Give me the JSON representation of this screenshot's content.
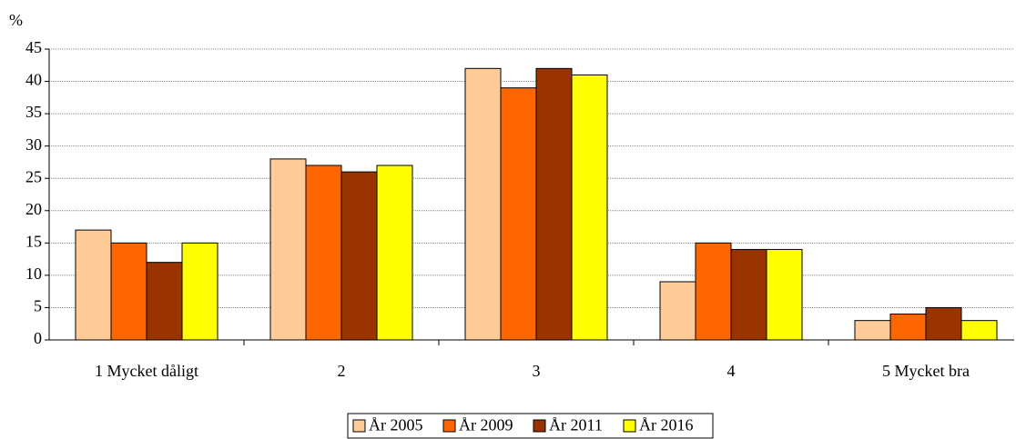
{
  "chart_data": {
    "type": "bar",
    "y_label": "%",
    "categories": [
      "1 Mycket dåligt",
      "2",
      "3",
      "4",
      "5 Mycket bra"
    ],
    "series": [
      {
        "name": "År 2005",
        "color": "#ffcc99",
        "values": [
          17,
          28,
          42,
          9,
          3
        ]
      },
      {
        "name": "År 2009",
        "color": "#ff6600",
        "values": [
          15,
          27,
          39,
          15,
          4
        ]
      },
      {
        "name": "År 2011",
        "color": "#993300",
        "values": [
          12,
          26,
          42,
          14,
          5
        ]
      },
      {
        "name": "År 2016",
        "color": "#ffff00",
        "values": [
          15,
          27,
          41,
          14,
          3
        ]
      }
    ],
    "ylim": [
      0,
      45
    ],
    "yticks": [
      0,
      5,
      10,
      15,
      20,
      25,
      30,
      35,
      40,
      45
    ],
    "grid": true,
    "legend": "bottom"
  }
}
